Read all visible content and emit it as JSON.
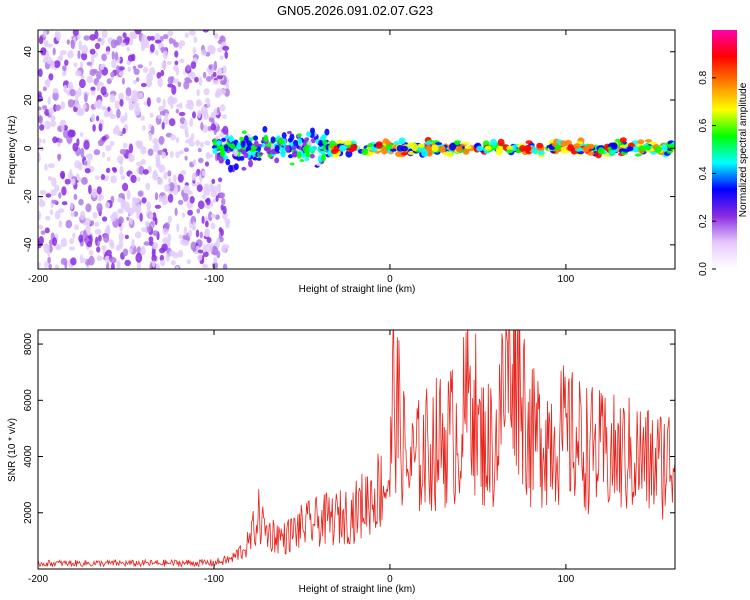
{
  "title": "GN05.2026.091.02.07.G23",
  "chart_data": [
    {
      "type": "heatmap",
      "title": "GN05.2026.091.02.07.G23",
      "xlabel": "Height of straight line (km)",
      "ylabel": "Frequency (Hz)",
      "xlim": [
        -200,
        162
      ],
      "ylim": [
        -50,
        49
      ],
      "xticks": [
        -200,
        -100,
        0,
        100
      ],
      "yticks": [
        -40,
        -20,
        0,
        20,
        40
      ],
      "colorbar": {
        "label": "Normalized spectral amplitude",
        "ticks": [
          "0.0",
          "0.2",
          "0.4",
          "0.6",
          "0.8"
        ],
        "range": [
          0,
          1
        ],
        "colors": [
          "#ffffff",
          "#e6c8ff",
          "#8a2be2",
          "#0000ff",
          "#00ffff",
          "#00ff00",
          "#ffff00",
          "#ff8000",
          "#ff0000",
          "#ff00aa"
        ]
      },
      "regions": [
        {
          "x_range": [
            -200,
            -92
          ],
          "description": "noise"
        },
        {
          "x_range": [
            -100,
            -35
          ],
          "freq_center": 0,
          "level": "0.2-0.5"
        },
        {
          "x_range": [
            -35,
            162
          ],
          "freq_center": 0,
          "level": "0.3-0.9"
        }
      ]
    },
    {
      "type": "line",
      "xlabel": "Height of straight line (km)",
      "ylabel": "SNR (10 * v/v)",
      "xlim": [
        -200,
        162
      ],
      "ylim": [
        0,
        8500
      ],
      "xticks": [
        -200,
        -100,
        0,
        100
      ],
      "yticks": [
        2000,
        4000,
        6000,
        8000
      ],
      "color": "#e8231b",
      "series": [
        {
          "name": "SNR",
          "x": [
            -200,
            -150,
            -100,
            -90,
            -80,
            -75,
            -70,
            -60,
            -50,
            -40,
            -30,
            -20,
            -10,
            0,
            2,
            10,
            20,
            30,
            40,
            47,
            50,
            60,
            70,
            80,
            90,
            100,
            110,
            120,
            130,
            140,
            150,
            160,
            162
          ],
          "y": [
            200,
            200,
            220,
            350,
            900,
            1900,
            1300,
            1100,
            1500,
            1700,
            1800,
            2000,
            2600,
            3200,
            6400,
            3500,
            4200,
            4600,
            4900,
            6700,
            4600,
            4400,
            8400,
            4600,
            4800,
            4700,
            4400,
            4100,
            4000,
            4000,
            3700,
            3900,
            3800
          ]
        }
      ]
    }
  ]
}
